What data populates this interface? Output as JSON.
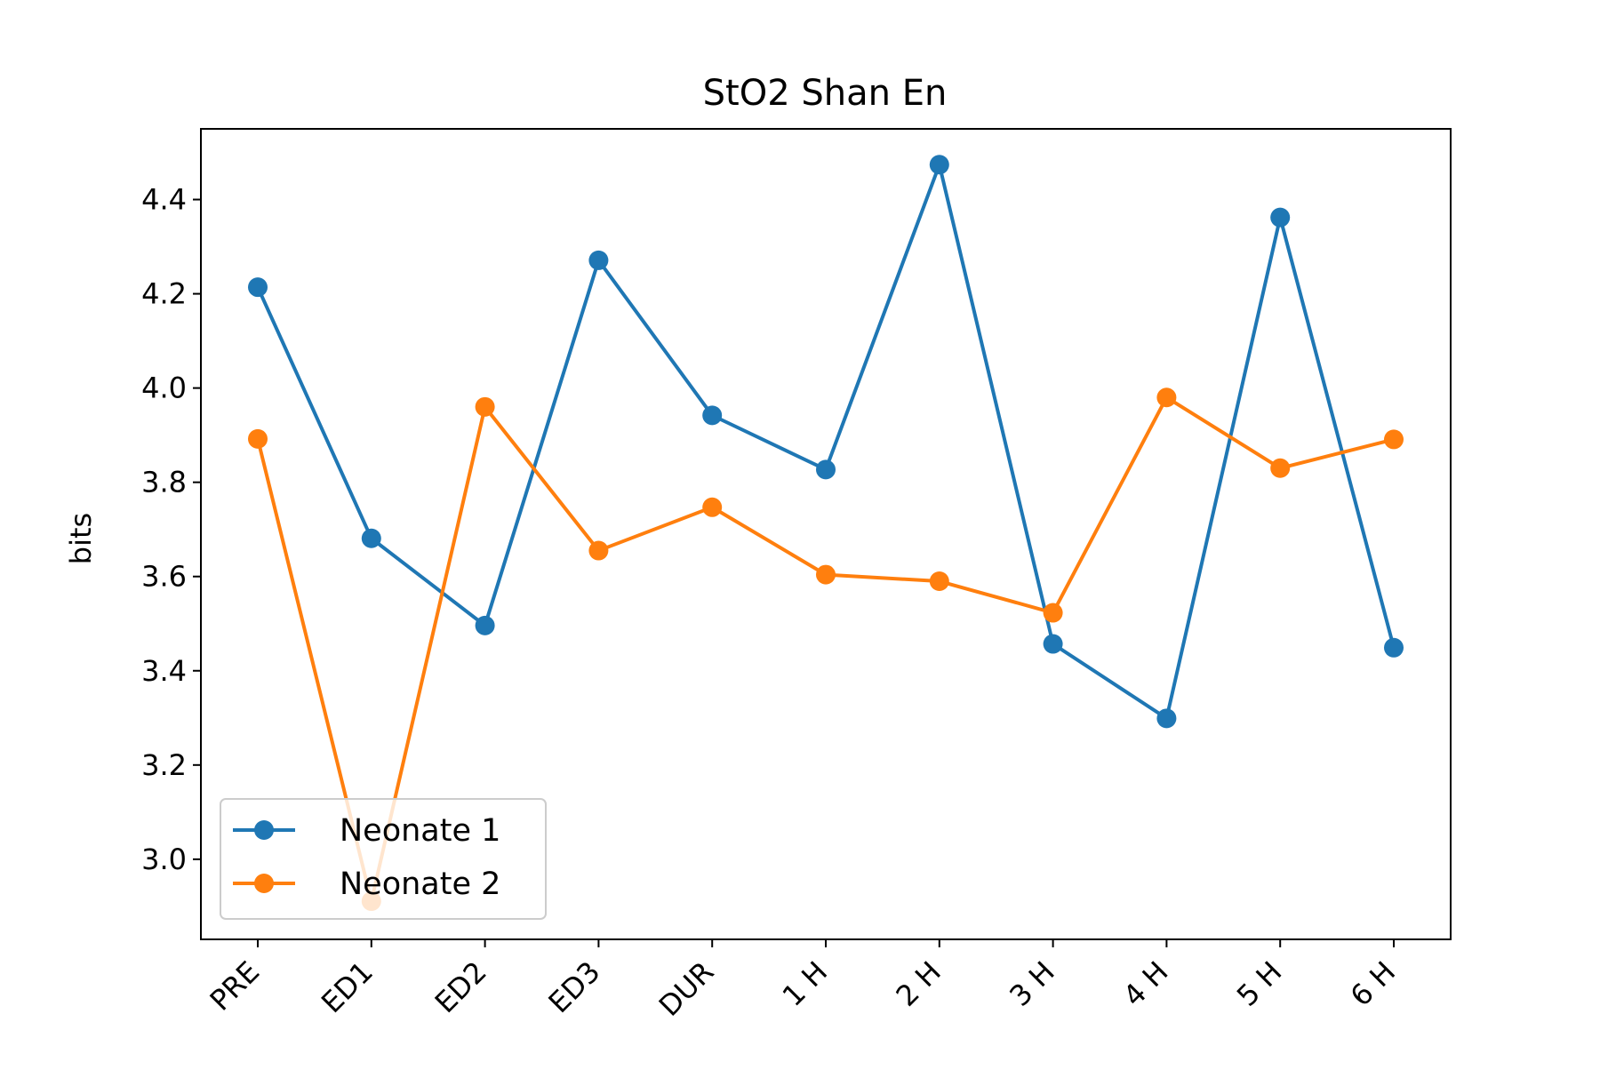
{
  "chart_data": {
    "type": "line",
    "title": "StO2 Shan En",
    "xlabel": "",
    "ylabel": "bits",
    "categories": [
      "PRE",
      "ED1",
      "ED2",
      "ED3",
      "DUR",
      "1 H",
      "2 H",
      "3 H",
      "4 H",
      "5 H",
      "6 H"
    ],
    "ylim": [
      2.83,
      4.55
    ],
    "yticks": [
      "3.0",
      "3.2",
      "3.4",
      "3.6",
      "3.8",
      "4.0",
      "4.2",
      "4.4"
    ],
    "grid": false,
    "legend_position": "lower-left",
    "series": [
      {
        "name": "Neonate 1",
        "color": "#1f77b4",
        "marker": "circle",
        "values": [
          4.214,
          3.681,
          3.496,
          4.271,
          3.942,
          3.827,
          4.474,
          3.457,
          3.299,
          4.362,
          3.449
        ]
      },
      {
        "name": "Neonate 2",
        "color": "#ff7f0e",
        "marker": "circle",
        "values": [
          3.892,
          2.911,
          3.96,
          3.655,
          3.747,
          3.604,
          3.59,
          3.523,
          3.98,
          3.83,
          3.891
        ]
      }
    ]
  }
}
